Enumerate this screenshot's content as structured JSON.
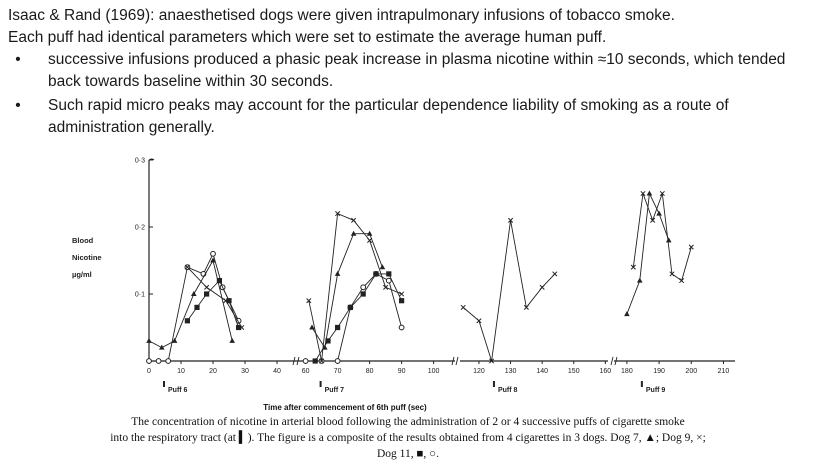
{
  "slide": {
    "intro_line1": "Isaac & Rand (1969): anaesthetised dogs were given intrapulmonary infusions of tobacco smoke.",
    "intro_line2": "Each puff had identical parameters which were set to estimate the average human puff.",
    "bullets": [
      "successive infusions produced a phasic peak increase in plasma nicotine within ≈10 seconds, which tended back towards baseline within 30 seconds.",
      "Such rapid micro peaks may account for the particular dependence liability of smoking as a route of administration generally."
    ],
    "bullet_symbol": "•"
  },
  "caption": {
    "line1": "The concentration of nicotine in arterial blood following the administration of 2 or 4 successive puffs of cigarette smoke",
    "line2": "into the respiratory tract (at ▍). The figure is a composite of the results obtained from 4 cigarettes in 3 dogs. Dog 7, ▲; Dog 9, ×;",
    "line3": "Dog 11, ■, ○."
  },
  "chart_data": {
    "type": "line",
    "ylabel_lines": [
      "Blood",
      "Nicotine",
      "µg/ml"
    ],
    "ylim": [
      0,
      0.3
    ],
    "yticks": [
      0.1,
      0.2,
      0.3
    ],
    "ytick_labels": [
      "0·1",
      "0·2",
      "0·3"
    ],
    "xlabel": "Time  after  commencement  of  6th puff  (sec)",
    "panels": [
      {
        "xticks": [
          0,
          10,
          20,
          30,
          40
        ],
        "puff_label": "Puff 6",
        "series": [
          {
            "marker": "open-circle",
            "x": [
              0,
              3,
              6,
              12,
              17,
              20,
              23,
              28
            ],
            "y": [
              0.0,
              0.0,
              0.0,
              0.14,
              0.13,
              0.16,
              0.11,
              0.06
            ]
          },
          {
            "marker": "filled-square",
            "x": [
              12,
              15,
              18,
              22,
              25,
              28
            ],
            "y": [
              0.06,
              0.08,
              0.1,
              0.12,
              0.09,
              0.05
            ]
          },
          {
            "marker": "cross",
            "x": [
              12,
              18,
              24,
              29
            ],
            "y": [
              0.14,
              0.11,
              0.09,
              0.05
            ]
          },
          {
            "marker": "triangle",
            "x": [
              0,
              4,
              8,
              14,
              20,
              26
            ],
            "y": [
              0.03,
              0.02,
              0.03,
              0.1,
              0.15,
              0.03
            ]
          }
        ]
      },
      {
        "xticks": [
          60,
          70,
          80,
          90,
          100
        ],
        "puff_label": "Puff 7",
        "series": [
          {
            "marker": "open-circle",
            "x": [
              60,
              65,
              70,
              74,
              78,
              82,
              86,
              90
            ],
            "y": [
              0.0,
              0.0,
              0.0,
              0.08,
              0.11,
              0.13,
              0.12,
              0.05
            ]
          },
          {
            "marker": "filled-square",
            "x": [
              63,
              67,
              70,
              74,
              78,
              82,
              86,
              90
            ],
            "y": [
              0.0,
              0.03,
              0.05,
              0.08,
              0.1,
              0.13,
              0.13,
              0.09
            ]
          },
          {
            "marker": "cross",
            "x": [
              61,
              65,
              70,
              75,
              80,
              85,
              90
            ],
            "y": [
              0.09,
              0.0,
              0.22,
              0.21,
              0.18,
              0.11,
              0.1
            ]
          },
          {
            "marker": "triangle",
            "x": [
              62,
              66,
              70,
              75,
              80,
              84
            ],
            "y": [
              0.05,
              0.02,
              0.13,
              0.19,
              0.19,
              0.14
            ]
          }
        ]
      },
      {
        "xticks": [
          120,
          130,
          140,
          150,
          160
        ],
        "puff_label": "Puff 8",
        "series": [
          {
            "marker": "cross",
            "x": [
              115,
              120,
              124,
              130,
              135,
              140,
              144
            ],
            "y": [
              0.08,
              0.06,
              0.0,
              0.21,
              0.08,
              0.11,
              0.13
            ]
          }
        ]
      },
      {
        "xticks": [
          180,
          190,
          200,
          210
        ],
        "puff_label": "Puff 9",
        "series": [
          {
            "marker": "triangle",
            "x": [
              180,
              184,
              187,
              190,
              193
            ],
            "y": [
              0.07,
              0.12,
              0.25,
              0.22,
              0.18
            ]
          },
          {
            "marker": "cross",
            "x": [
              182,
              185,
              188,
              191,
              194,
              197,
              200
            ],
            "y": [
              0.14,
              0.25,
              0.21,
              0.25,
              0.13,
              0.12,
              0.17
            ]
          }
        ]
      }
    ]
  }
}
